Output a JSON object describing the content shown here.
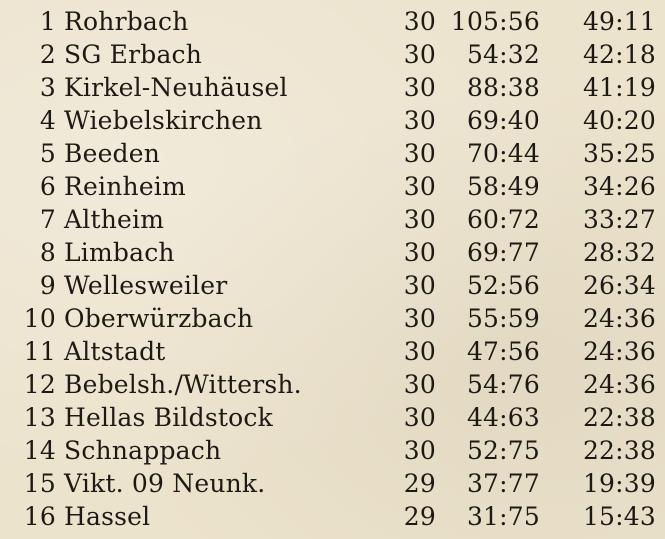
{
  "standings": [
    {
      "rank": "1",
      "team": "Rohrbach",
      "games": "30",
      "goals": "105:56",
      "points": "49:11"
    },
    {
      "rank": "2",
      "team": "SG Erbach",
      "games": "30",
      "goals": "54:32",
      "points": "42:18"
    },
    {
      "rank": "3",
      "team": "Kirkel-Neuhäusel",
      "games": "30",
      "goals": "88:38",
      "points": "41:19"
    },
    {
      "rank": "4",
      "team": "Wiebelskirchen",
      "games": "30",
      "goals": "69:40",
      "points": "40:20"
    },
    {
      "rank": "5",
      "team": "Beeden",
      "games": "30",
      "goals": "70:44",
      "points": "35:25"
    },
    {
      "rank": "6",
      "team": "Reinheim",
      "games": "30",
      "goals": "58:49",
      "points": "34:26"
    },
    {
      "rank": "7",
      "team": "Altheim",
      "games": "30",
      "goals": "60:72",
      "points": "33:27"
    },
    {
      "rank": "8",
      "team": "Limbach",
      "games": "30",
      "goals": "69:77",
      "points": "28:32"
    },
    {
      "rank": "9",
      "team": "Wellesweiler",
      "games": "30",
      "goals": "52:56",
      "points": "26:34"
    },
    {
      "rank": "10",
      "team": "Oberwürzbach",
      "games": "30",
      "goals": "55:59",
      "points": "24:36"
    },
    {
      "rank": "11",
      "team": "Altstadt",
      "games": "30",
      "goals": "47:56",
      "points": "24:36"
    },
    {
      "rank": "12",
      "team": "Bebelsh./Wittersh.",
      "games": "30",
      "goals": "54:76",
      "points": "24:36"
    },
    {
      "rank": "13",
      "team": "Hellas Bildstock",
      "games": "30",
      "goals": "44:63",
      "points": "22:38"
    },
    {
      "rank": "14",
      "team": "Schnappach",
      "games": "30",
      "goals": "52:75",
      "points": "22:38"
    },
    {
      "rank": "15",
      "team": "Vikt. 09 Neunk.",
      "games": "29",
      "goals": "37:77",
      "points": "19:39"
    },
    {
      "rank": "16",
      "team": "Hassel",
      "games": "29",
      "goals": "31:75",
      "points": "15:43"
    }
  ]
}
